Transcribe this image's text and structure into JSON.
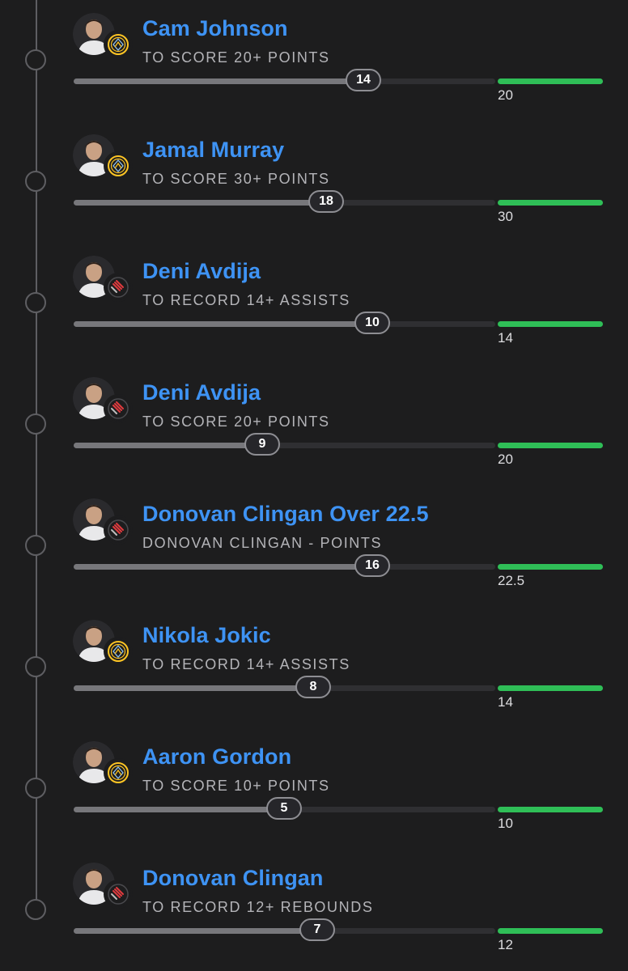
{
  "legs": [
    {
      "title": "Cam Johnson",
      "subtitle": "TO SCORE 20+ POINTS",
      "current": 14,
      "target": "20",
      "team_logo": "nuggets-logo",
      "progress_fraction": 0.69
    },
    {
      "title": "Jamal Murray",
      "subtitle": "TO SCORE 30+ POINTS",
      "current": 18,
      "target": "30",
      "team_logo": "nuggets-logo",
      "progress_fraction": 0.6
    },
    {
      "title": "Deni Avdija",
      "subtitle": "TO RECORD 14+ ASSISTS",
      "current": 10,
      "target": "14",
      "team_logo": "trail-blazers-logo",
      "progress_fraction": 0.71
    },
    {
      "title": "Deni Avdija",
      "subtitle": "TO SCORE 20+ POINTS",
      "current": 9,
      "target": "20",
      "team_logo": "trail-blazers-logo",
      "progress_fraction": 0.45
    },
    {
      "title": "Donovan Clingan Over 22.5",
      "subtitle": "DONOVAN CLINGAN - POINTS",
      "current": 16,
      "target": "22.5",
      "team_logo": "trail-blazers-logo",
      "progress_fraction": 0.71
    },
    {
      "title": "Nikola Jokic",
      "subtitle": "TO RECORD 14+ ASSISTS",
      "current": 8,
      "target": "14",
      "team_logo": "nuggets-logo",
      "progress_fraction": 0.57
    },
    {
      "title": "Aaron Gordon",
      "subtitle": "TO SCORE 10+ POINTS",
      "current": 5,
      "target": "10",
      "team_logo": "nuggets-logo",
      "progress_fraction": 0.5
    },
    {
      "title": "Donovan Clingan",
      "subtitle": "TO RECORD 12+ REBOUNDS",
      "current": 7,
      "target": "12",
      "team_logo": "trail-blazers-logo",
      "progress_fraction": 0.58
    }
  ],
  "colors": {
    "title": "#3e93f4",
    "target_bar": "#2fbe57",
    "progress_fill": "#77777b",
    "track": "#2f2f32",
    "background": "#1d1d1e",
    "nuggets_gold": "#fec524",
    "nuggets_navy": "#0e2240",
    "blazers_red": "#e03a3e"
  }
}
